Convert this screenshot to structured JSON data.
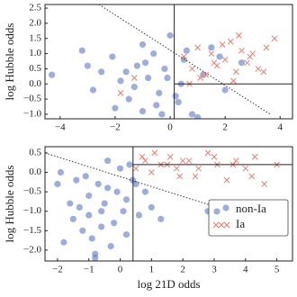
{
  "chart_data": [
    {
      "type": "scatter",
      "ylabel": "log Hubble odds",
      "xlim": [
        -4.55,
        4.45
      ],
      "ylim": [
        -1.15,
        2.62
      ],
      "xticks": [
        {
          "value": -4,
          "label": "−4"
        },
        {
          "value": -2,
          "label": "−2"
        },
        0,
        2,
        4
      ],
      "yticks": [
        {
          "value": -1.0,
          "label": "−1.0"
        },
        {
          "value": -0.5,
          "label": "−0.5"
        },
        {
          "value": 0.0,
          "label": "0.0"
        },
        {
          "value": 0.5,
          "label": "0.5"
        },
        {
          "value": 1.0,
          "label": "1.0"
        },
        {
          "value": 1.5,
          "label": "1.5"
        },
        {
          "value": 2.0,
          "label": "2.0"
        },
        {
          "value": 2.5,
          "label": "2.5"
        }
      ],
      "cut_x": 0.15,
      "cut_y": 0.0,
      "diagonal": [
        [
          -2.59,
          2.62
        ],
        [
          3.64,
          -1.0
        ]
      ],
      "series": [
        {
          "marker": "circle",
          "color": "#5b78c4",
          "x": [
            -4.3,
            -3.2,
            -2.8,
            -2.5,
            -2.1,
            -1.8,
            -1.5,
            -1.2,
            -1.0,
            -0.8,
            -0.6,
            -0.4,
            -0.2,
            0.0,
            0.3,
            0.5,
            0.8,
            1.2,
            1.5,
            2.0,
            2.6,
            -2.0,
            -1.6,
            -1.3,
            -0.9,
            -0.5,
            -0.1,
            0.2,
            0.6,
            1.0,
            -3.0,
            -1.0,
            0.4,
            1.8,
            -0.3
          ],
          "values": [
            0.3,
            1.1,
            -0.2,
            0.4,
            0.9,
            0.1,
            -0.5,
            0.6,
            -0.9,
            0.2,
            1.0,
            -0.3,
            0.5,
            1.6,
            -0.6,
            0.8,
            -1.0,
            0.3,
            1.2,
            -0.2,
            0.7,
            -0.8,
            0.4,
            -0.1,
            0.7,
            -0.7,
            0.2,
            -0.4,
            1.1,
            -1.1,
            0.6,
            1.3,
            0.0,
            0.9,
            -1.0
          ]
        },
        {
          "marker": "cross",
          "color": "#f07a6a",
          "x": [
            0.5,
            0.8,
            1.0,
            1.3,
            1.5,
            1.7,
            2.0,
            2.2,
            2.4,
            2.6,
            2.8,
            3.0,
            3.2,
            3.5,
            3.8,
            1.1,
            1.9,
            2.3,
            2.9,
            3.4,
            0.7,
            1.6,
            2.5,
            -1.8,
            -1.3
          ],
          "values": [
            0.9,
            0.5,
            1.2,
            0.3,
            1.0,
            0.6,
            0.8,
            1.4,
            0.4,
            1.1,
            0.7,
            1.0,
            0.5,
            1.2,
            1.5,
            0.2,
            1.3,
            0.1,
            0.9,
            0.4,
            0.0,
            0.7,
            1.6,
            -0.3,
            0.2
          ]
        }
      ]
    },
    {
      "type": "scatter",
      "ylabel": "log Hubble odds",
      "xlabel": "log 21D odds",
      "xlim": [
        -2.4,
        5.5
      ],
      "ylim": [
        -2.28,
        0.66
      ],
      "xticks": [
        {
          "value": -2,
          "label": "−2"
        },
        {
          "value": -1,
          "label": "−1"
        },
        0,
        1,
        2,
        3,
        4,
        5
      ],
      "yticks": [
        {
          "value": -2.0,
          "label": "−2.0"
        },
        {
          "value": -1.5,
          "label": "−1.5"
        },
        {
          "value": -1.0,
          "label": "−1.0"
        },
        {
          "value": -0.5,
          "label": "−0.5"
        },
        {
          "value": 0.0,
          "label": "0.0"
        },
        {
          "value": 0.5,
          "label": "0.5"
        }
      ],
      "cut_x": 0.41,
      "cut_y": 0.2,
      "diagonal": [
        [
          -2.4,
          0.5
        ],
        [
          5.34,
          -1.47
        ]
      ],
      "legend": "lower right",
      "series": [
        {
          "name": "non-Ia",
          "marker": "circle",
          "color": "#5b78c4",
          "x": [
            -2.0,
            -1.8,
            -1.6,
            -1.4,
            -1.2,
            -1.0,
            -0.8,
            -0.6,
            -0.4,
            -0.2,
            0.0,
            0.2,
            0.4,
            0.6,
            0.8,
            1.0,
            -1.5,
            -1.1,
            -0.9,
            -0.7,
            -0.5,
            -0.3,
            -0.1,
            0.1,
            0.3,
            -1.3,
            -0.6,
            0.5,
            1.3,
            2.8,
            -1.9,
            -0.8,
            0.2,
            -1.0,
            -0.4
          ],
          "values": [
            -0.3,
            -1.8,
            -0.8,
            -0.2,
            -1.5,
            -0.6,
            -2.1,
            -1.0,
            -0.4,
            -1.3,
            0.1,
            -0.7,
            -0.2,
            -1.1,
            -0.5,
            -0.9,
            -1.2,
            -0.1,
            -1.7,
            -0.3,
            -0.8,
            -1.9,
            -0.5,
            -1.0,
            0.2,
            -0.9,
            -1.4,
            -0.3,
            -1.2,
            -1.0,
            0.0,
            -2.2,
            -1.6,
            -1.1,
            0.3
          ]
        },
        {
          "name": "Ia",
          "marker": "cross",
          "color": "#f07a6a",
          "x": [
            0.5,
            0.8,
            1.0,
            1.3,
            1.6,
            1.9,
            2.2,
            2.5,
            2.8,
            3.1,
            3.4,
            3.7,
            4.0,
            4.3,
            4.6,
            5.0,
            1.1,
            1.8,
            2.4,
            3.0,
            3.6,
            4.2,
            0.7,
            1.5,
            2.0
          ],
          "values": [
            0.1,
            0.3,
            0.0,
            0.2,
            0.4,
            -0.1,
            0.3,
            0.1,
            0.5,
            0.2,
            -0.2,
            0.3,
            0.1,
            0.4,
            -0.3,
            0.2,
            0.5,
            0.1,
            -0.1,
            0.4,
            0.2,
            -0.1,
            0.4,
            0.2,
            0.3
          ]
        }
      ]
    }
  ]
}
